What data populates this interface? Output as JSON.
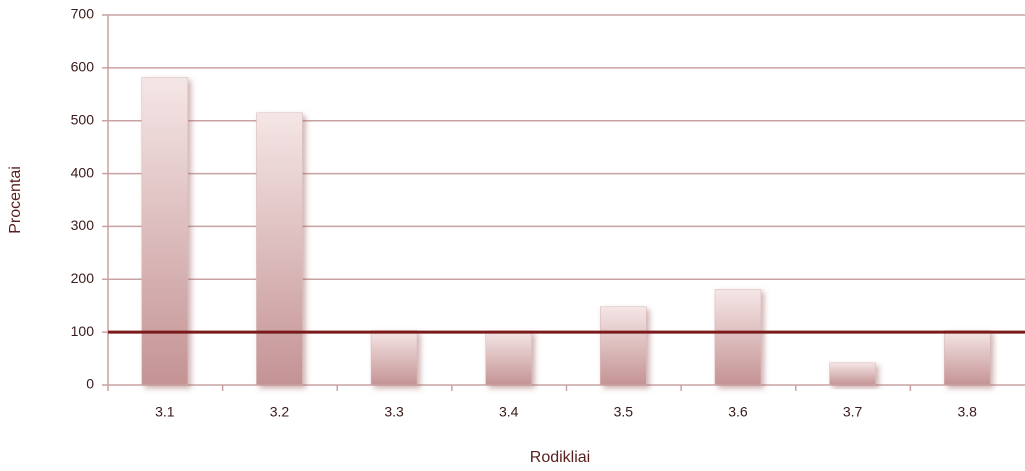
{
  "chart_data": {
    "type": "bar",
    "x_label": "Rodikliai",
    "y_label": "Procentai",
    "categories": [
      "3.1",
      "3.2",
      "3.3",
      "3.4",
      "3.5",
      "3.6",
      "3.7",
      "3.8"
    ],
    "values": [
      582,
      515,
      103,
      102,
      148,
      181,
      42,
      103
    ],
    "color": "#c49394",
    "ylim": [
      0,
      700
    ],
    "yticks": [
      0,
      100,
      200,
      300,
      400,
      500,
      600,
      700
    ],
    "grid": true,
    "reference_line": {
      "value": 100,
      "color": "#7a1a1a"
    }
  }
}
